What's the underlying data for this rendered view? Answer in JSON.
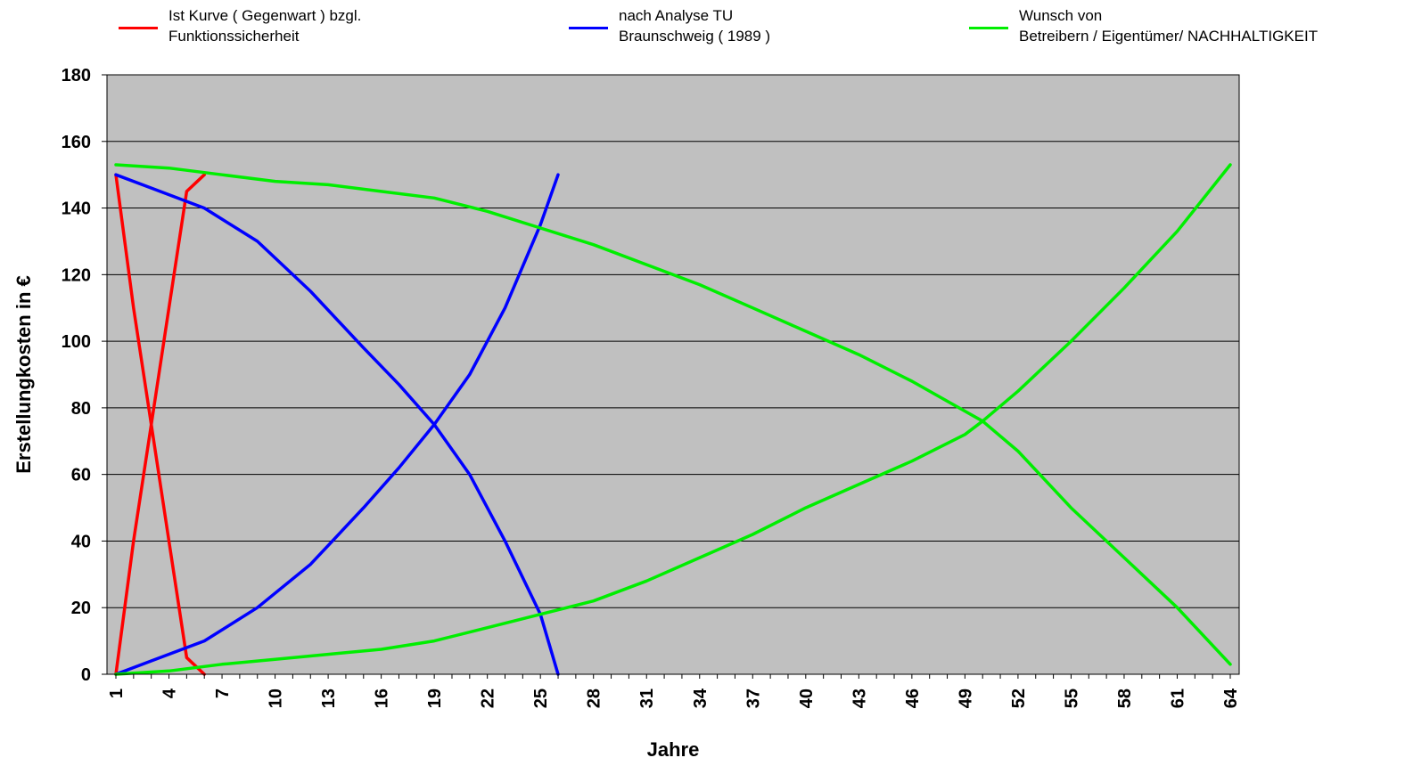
{
  "chart_data": {
    "type": "line",
    "xlabel": "Jahre",
    "ylabel": "Erstellungkosten in €",
    "xlim": [
      1,
      64
    ],
    "ylim": [
      0,
      180
    ],
    "y_ticks": [
      "0",
      "20",
      "40",
      "60",
      "80",
      "100",
      "120",
      "140",
      "160",
      "180"
    ],
    "x_ticks": [
      "1",
      "4",
      "7",
      "10",
      "13",
      "16",
      "19",
      "22",
      "25",
      "28",
      "31",
      "34",
      "37",
      "40",
      "43",
      "46",
      "49",
      "52",
      "55",
      "58",
      "61",
      "64"
    ],
    "plot_background": "#c0c0c0",
    "grid": true,
    "legend_position": "top",
    "series": [
      {
        "name": "Ist Kurve ( Gegenwart ) bzgl.\nFunktionssicherheit",
        "color": "#ff0000",
        "x": [
          1,
          2,
          3,
          4,
          5,
          6
        ],
        "y": [
          150,
          110,
          75,
          40,
          5,
          0
        ]
      },
      {
        "name": "",
        "color": "#ff0000",
        "x": [
          1,
          2,
          3,
          4,
          5,
          6
        ],
        "y": [
          0,
          40,
          75,
          110,
          145,
          150
        ]
      },
      {
        "name": "nach Analyse TU\nBraunschweig ( 1989 )",
        "color": "#0000ff",
        "x": [
          1,
          3,
          6,
          9,
          12,
          15,
          17,
          19,
          21,
          23,
          25,
          26
        ],
        "y": [
          150,
          146,
          140,
          130,
          115,
          98,
          87,
          75,
          60,
          40,
          18,
          0
        ]
      },
      {
        "name": "",
        "color": "#0000ff",
        "x": [
          1,
          3,
          6,
          9,
          12,
          15,
          17,
          19,
          21,
          23,
          25,
          26
        ],
        "y": [
          0,
          4,
          10,
          20,
          33,
          50,
          62,
          75,
          90,
          110,
          135,
          150
        ]
      },
      {
        "name": "Wunsch von\nBetreibern / Eigentümer/ NACHHALTIGKEIT",
        "color": "#00ee00",
        "x": [
          1,
          4,
          7,
          10,
          13,
          16,
          19,
          22,
          25,
          28,
          31,
          34,
          37,
          40,
          43,
          46,
          49,
          50,
          52,
          55,
          58,
          61,
          64
        ],
        "y": [
          153,
          152,
          150,
          148,
          147,
          145,
          143,
          139,
          134,
          129,
          123,
          117,
          110,
          103,
          96,
          88,
          79,
          76,
          67,
          50,
          35,
          20,
          3
        ]
      },
      {
        "name": "",
        "color": "#00ee00",
        "x": [
          1,
          4,
          7,
          10,
          13,
          16,
          19,
          22,
          25,
          28,
          31,
          34,
          37,
          40,
          43,
          46,
          49,
          50,
          52,
          55,
          58,
          61,
          64
        ],
        "y": [
          0,
          1,
          3,
          4.5,
          6,
          7.5,
          10,
          14,
          18,
          22,
          28,
          35,
          42,
          50,
          57,
          64,
          72,
          76,
          85,
          100,
          116,
          133,
          153
        ]
      }
    ]
  }
}
